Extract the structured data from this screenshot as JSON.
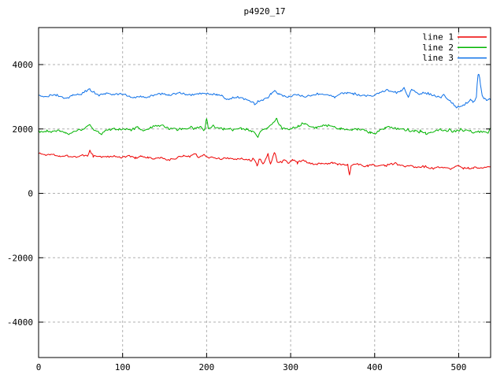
{
  "window": {
    "background": "#ffffff"
  },
  "chart_data": {
    "type": "line",
    "title": "p4920_17",
    "xlabel": "",
    "ylabel": "",
    "xlim": [
      0,
      538
    ],
    "ylim": [
      -5100,
      5150
    ],
    "grid": true,
    "grid_color": "#b0b0b0",
    "border_color": "#000000",
    "legend_position": "top-right",
    "x_ticks": [
      {
        "value": 0,
        "label": "0"
      },
      {
        "value": 100,
        "label": "100"
      },
      {
        "value": 200,
        "label": "200"
      },
      {
        "value": 300,
        "label": "300"
      },
      {
        "value": 400,
        "label": "400"
      },
      {
        "value": 500,
        "label": "500"
      }
    ],
    "y_ticks": [
      {
        "value": 4000,
        "label": "4000"
      },
      {
        "value": 2000,
        "label": "2000"
      },
      {
        "value": 0,
        "label": "0"
      },
      {
        "value": -2000,
        "label": "-2000"
      },
      {
        "value": -4000,
        "label": "-4000"
      }
    ],
    "noise_seed": 1337,
    "sample_step": 1.5,
    "series": [
      {
        "name": "line 1",
        "color": "#ee0000",
        "noise_amp": 30,
        "keypoints": [
          [
            0,
            1250
          ],
          [
            8,
            1190
          ],
          [
            15,
            1220
          ],
          [
            25,
            1170
          ],
          [
            35,
            1160
          ],
          [
            45,
            1140
          ],
          [
            52,
            1180
          ],
          [
            58,
            1150
          ],
          [
            61,
            1320
          ],
          [
            65,
            1180
          ],
          [
            72,
            1140
          ],
          [
            80,
            1130
          ],
          [
            90,
            1150
          ],
          [
            100,
            1120
          ],
          [
            108,
            1160
          ],
          [
            115,
            1100
          ],
          [
            122,
            1140
          ],
          [
            130,
            1110
          ],
          [
            137,
            1070
          ],
          [
            145,
            1100
          ],
          [
            150,
            1060
          ],
          [
            155,
            1040
          ],
          [
            165,
            1100
          ],
          [
            172,
            1180
          ],
          [
            180,
            1150
          ],
          [
            186,
            1250
          ],
          [
            190,
            1120
          ],
          [
            197,
            1200
          ],
          [
            203,
            1120
          ],
          [
            210,
            1100
          ],
          [
            218,
            1070
          ],
          [
            225,
            1100
          ],
          [
            232,
            1060
          ],
          [
            240,
            1080
          ],
          [
            247,
            1050
          ],
          [
            252,
            1000
          ],
          [
            256,
            1090
          ],
          [
            260,
            860
          ],
          [
            263,
            1080
          ],
          [
            267,
            900
          ],
          [
            270,
            1040
          ],
          [
            273,
            1230
          ],
          [
            276,
            900
          ],
          [
            281,
            1280
          ],
          [
            284,
            1000
          ],
          [
            288,
            950
          ],
          [
            293,
            1050
          ],
          [
            297,
            920
          ],
          [
            302,
            1030
          ],
          [
            308,
            970
          ],
          [
            315,
            1010
          ],
          [
            322,
            950
          ],
          [
            330,
            900
          ],
          [
            337,
            940
          ],
          [
            344,
            900
          ],
          [
            350,
            950
          ],
          [
            356,
            880
          ],
          [
            362,
            920
          ],
          [
            368,
            880
          ],
          [
            370,
            560
          ],
          [
            372,
            890
          ],
          [
            378,
            920
          ],
          [
            385,
            860
          ],
          [
            392,
            850
          ],
          [
            398,
            880
          ],
          [
            405,
            850
          ],
          [
            412,
            880
          ],
          [
            420,
            910
          ],
          [
            425,
            930
          ],
          [
            430,
            860
          ],
          [
            437,
            830
          ],
          [
            444,
            860
          ],
          [
            450,
            800
          ],
          [
            457,
            840
          ],
          [
            463,
            800
          ],
          [
            470,
            770
          ],
          [
            477,
            810
          ],
          [
            483,
            780
          ],
          [
            490,
            750
          ],
          [
            495,
            820
          ],
          [
            500,
            860
          ],
          [
            505,
            810
          ],
          [
            512,
            780
          ],
          [
            518,
            800
          ],
          [
            525,
            780
          ],
          [
            531,
            810
          ],
          [
            538,
            800
          ]
        ]
      },
      {
        "name": "line 2",
        "color": "#00b400",
        "noise_amp": 35,
        "keypoints": [
          [
            0,
            1950
          ],
          [
            5,
            1870
          ],
          [
            10,
            1950
          ],
          [
            18,
            1910
          ],
          [
            26,
            1950
          ],
          [
            32,
            1900
          ],
          [
            36,
            1840
          ],
          [
            42,
            1930
          ],
          [
            50,
            1980
          ],
          [
            56,
            2030
          ],
          [
            61,
            2140
          ],
          [
            66,
            1990
          ],
          [
            71,
            1900
          ],
          [
            75,
            1840
          ],
          [
            80,
            1950
          ],
          [
            88,
            2000
          ],
          [
            95,
            1990
          ],
          [
            102,
            2010
          ],
          [
            110,
            1970
          ],
          [
            118,
            2050
          ],
          [
            126,
            1950
          ],
          [
            134,
            2060
          ],
          [
            141,
            2090
          ],
          [
            148,
            2100
          ],
          [
            155,
            2000
          ],
          [
            162,
            2030
          ],
          [
            170,
            1980
          ],
          [
            178,
            2040
          ],
          [
            186,
            2010
          ],
          [
            193,
            2060
          ],
          [
            198,
            2000
          ],
          [
            200,
            2350
          ],
          [
            202,
            2010
          ],
          [
            208,
            2090
          ],
          [
            214,
            2050
          ],
          [
            220,
            2000
          ],
          [
            227,
            2030
          ],
          [
            234,
            1980
          ],
          [
            241,
            2010
          ],
          [
            248,
            1990
          ],
          [
            254,
            1930
          ],
          [
            258,
            1860
          ],
          [
            261,
            1740
          ],
          [
            264,
            1900
          ],
          [
            268,
            1990
          ],
          [
            272,
            2030
          ],
          [
            276,
            2090
          ],
          [
            280,
            2200
          ],
          [
            283,
            2320
          ],
          [
            286,
            2150
          ],
          [
            290,
            2020
          ],
          [
            296,
            1990
          ],
          [
            303,
            2030
          ],
          [
            310,
            2090
          ],
          [
            317,
            2150
          ],
          [
            324,
            2090
          ],
          [
            331,
            2040
          ],
          [
            338,
            2090
          ],
          [
            345,
            2110
          ],
          [
            352,
            2060
          ],
          [
            359,
            2010
          ],
          [
            366,
            1990
          ],
          [
            373,
            1970
          ],
          [
            380,
            2000
          ],
          [
            388,
            1950
          ],
          [
            395,
            1880
          ],
          [
            400,
            1850
          ],
          [
            406,
            1950
          ],
          [
            413,
            2030
          ],
          [
            420,
            2060
          ],
          [
            427,
            2000
          ],
          [
            434,
            1980
          ],
          [
            441,
            1950
          ],
          [
            448,
            1930
          ],
          [
            455,
            1900
          ],
          [
            461,
            1850
          ],
          [
            466,
            1870
          ],
          [
            472,
            1930
          ],
          [
            479,
            1980
          ],
          [
            486,
            1950
          ],
          [
            493,
            1930
          ],
          [
            500,
            1940
          ],
          [
            507,
            1960
          ],
          [
            514,
            1930
          ],
          [
            520,
            1880
          ],
          [
            526,
            1920
          ],
          [
            531,
            1890
          ],
          [
            535,
            1900
          ],
          [
            538,
            2010
          ]
        ]
      },
      {
        "name": "line 3",
        "color": "#0d70e8",
        "noise_amp": 28,
        "keypoints": [
          [
            0,
            3060
          ],
          [
            8,
            3000
          ],
          [
            15,
            3070
          ],
          [
            22,
            3050
          ],
          [
            28,
            2990
          ],
          [
            33,
            2950
          ],
          [
            40,
            3050
          ],
          [
            48,
            3090
          ],
          [
            55,
            3150
          ],
          [
            61,
            3240
          ],
          [
            66,
            3110
          ],
          [
            72,
            3050
          ],
          [
            80,
            3100
          ],
          [
            88,
            3060
          ],
          [
            95,
            3090
          ],
          [
            102,
            3070
          ],
          [
            108,
            3010
          ],
          [
            115,
            2980
          ],
          [
            122,
            3010
          ],
          [
            128,
            2950
          ],
          [
            135,
            3040
          ],
          [
            141,
            3080
          ],
          [
            148,
            3100
          ],
          [
            155,
            3050
          ],
          [
            162,
            3090
          ],
          [
            168,
            3130
          ],
          [
            175,
            3080
          ],
          [
            182,
            3060
          ],
          [
            190,
            3090
          ],
          [
            198,
            3110
          ],
          [
            205,
            3070
          ],
          [
            212,
            3080
          ],
          [
            218,
            3040
          ],
          [
            223,
            2880
          ],
          [
            228,
            2940
          ],
          [
            234,
            3000
          ],
          [
            240,
            2970
          ],
          [
            246,
            2920
          ],
          [
            251,
            2870
          ],
          [
            255,
            2820
          ],
          [
            257,
            2780
          ],
          [
            260,
            2820
          ],
          [
            264,
            2860
          ],
          [
            268,
            2910
          ],
          [
            272,
            2970
          ],
          [
            277,
            3100
          ],
          [
            281,
            3170
          ],
          [
            286,
            3080
          ],
          [
            292,
            3020
          ],
          [
            298,
            3000
          ],
          [
            305,
            3070
          ],
          [
            312,
            3040
          ],
          [
            318,
            3010
          ],
          [
            325,
            3050
          ],
          [
            332,
            3090
          ],
          [
            340,
            3060
          ],
          [
            347,
            3030
          ],
          [
            353,
            2970
          ],
          [
            360,
            3100
          ],
          [
            367,
            3120
          ],
          [
            374,
            3090
          ],
          [
            381,
            3060
          ],
          [
            388,
            3040
          ],
          [
            395,
            3020
          ],
          [
            400,
            3050
          ],
          [
            406,
            3120
          ],
          [
            411,
            3180
          ],
          [
            415,
            3230
          ],
          [
            420,
            3150
          ],
          [
            426,
            3110
          ],
          [
            431,
            3180
          ],
          [
            435,
            3280
          ],
          [
            440,
            3000
          ],
          [
            444,
            3250
          ],
          [
            448,
            3140
          ],
          [
            453,
            3070
          ],
          [
            458,
            3130
          ],
          [
            463,
            3100
          ],
          [
            468,
            3060
          ],
          [
            472,
            3030
          ],
          [
            476,
            2990
          ],
          [
            479,
            2950
          ],
          [
            482,
            3060
          ],
          [
            486,
            2950
          ],
          [
            490,
            2880
          ],
          [
            493,
            2790
          ],
          [
            497,
            2680
          ],
          [
            500,
            2700
          ],
          [
            504,
            2720
          ],
          [
            508,
            2760
          ],
          [
            511,
            2800
          ],
          [
            514,
            2900
          ],
          [
            517,
            2840
          ],
          [
            519,
            2890
          ],
          [
            521,
            3010
          ],
          [
            522,
            3400
          ],
          [
            523,
            3650
          ],
          [
            524,
            3700
          ],
          [
            525,
            3580
          ],
          [
            526,
            3340
          ],
          [
            528,
            3060
          ],
          [
            530,
            2960
          ],
          [
            533,
            2900
          ],
          [
            536,
            2950
          ],
          [
            538,
            2900
          ]
        ]
      }
    ]
  }
}
